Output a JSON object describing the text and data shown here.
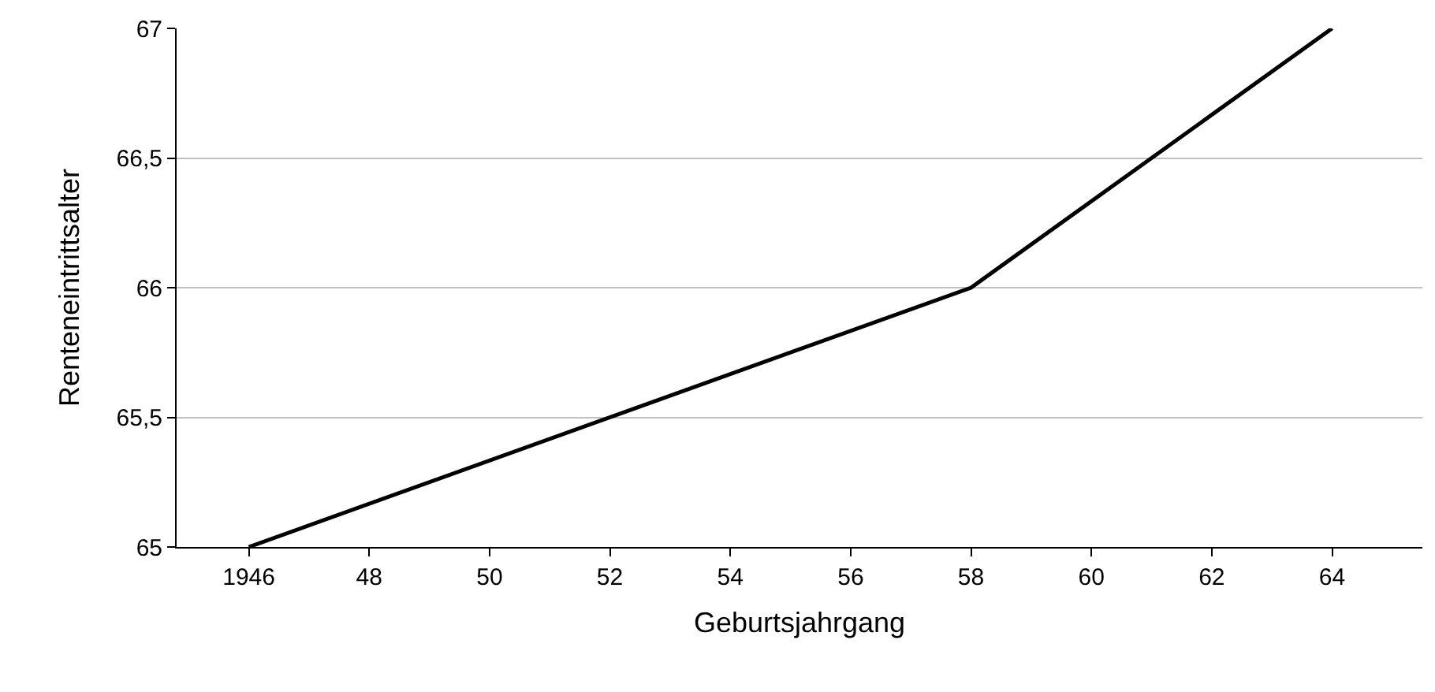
{
  "chart_data": {
    "type": "line",
    "xlabel": "Geburtsjahrgang",
    "ylabel": "Renteneintrittsalter",
    "x": [
      1946,
      1958,
      1964
    ],
    "series": [
      {
        "color": "#000000",
        "values": [
          65,
          66,
          67
        ]
      }
    ],
    "xlim": [
      1944.8,
      1965.5
    ],
    "xticks": [
      {
        "value": 1946,
        "label": "1946"
      },
      {
        "value": 1948,
        "label": "48"
      },
      {
        "value": 1950,
        "label": "50"
      },
      {
        "value": 1952,
        "label": "52"
      },
      {
        "value": 1954,
        "label": "54"
      },
      {
        "value": 1956,
        "label": "56"
      },
      {
        "value": 1958,
        "label": "58"
      },
      {
        "value": 1960,
        "label": "60"
      },
      {
        "value": 1962,
        "label": "62"
      },
      {
        "value": 1964,
        "label": "64"
      }
    ],
    "ylim": [
      65,
      67
    ],
    "yticks": [
      {
        "value": 65,
        "label": "65"
      },
      {
        "value": 65.5,
        "label": "65,5"
      },
      {
        "value": 66,
        "label": "66"
      },
      {
        "value": 66.5,
        "label": "66,5"
      },
      {
        "value": 67,
        "label": "67"
      }
    ],
    "grid": "y",
    "marker": "none",
    "line_style": "solid"
  }
}
